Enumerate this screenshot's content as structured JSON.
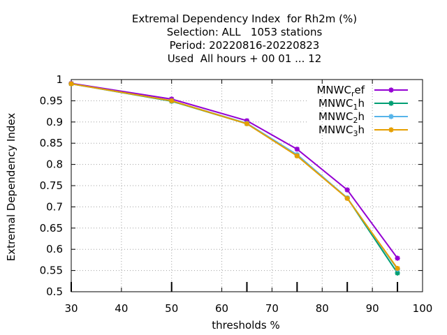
{
  "chart_data": {
    "type": "line",
    "title_lines": [
      "Extremal Dependency Index  for Rh2m (%)",
      "Selection: ALL   1053 stations",
      "Period: 20220816-20220823",
      "Used  All hours + 00 01 ... 12"
    ],
    "xlabel": "thresholds %",
    "ylabel": "Extremal Dependency Index",
    "xlim": [
      30,
      100
    ],
    "ylim": [
      0.5,
      1
    ],
    "x_ticks": [
      30,
      40,
      50,
      60,
      70,
      80,
      90,
      100
    ],
    "y_ticks": [
      0.5,
      0.55,
      0.6,
      0.65,
      0.7,
      0.75,
      0.8,
      0.85,
      0.9,
      0.95,
      1
    ],
    "y_tick_labels": [
      "0.5",
      "0.55",
      "0.6",
      "0.65",
      "0.7",
      "0.75",
      "0.8",
      "0.85",
      "0.9",
      "0.95",
      "1"
    ],
    "data_x_ticks": [
      30,
      50,
      65,
      75,
      85,
      95
    ],
    "grid": true,
    "legend_position": "top-right",
    "x": [
      30,
      50,
      65,
      75,
      85,
      95
    ],
    "series": [
      {
        "name": "MNWC_ref",
        "label_base": "MNWC",
        "label_sub": "r",
        "label_rest": "ef",
        "color": "#9400d3",
        "values": [
          0.991,
          0.954,
          0.903,
          0.836,
          0.74,
          0.579
        ]
      },
      {
        "name": "MNWC_1h",
        "label_base": "MNWC",
        "label_sub": "1",
        "label_rest": "h",
        "color": "#009e73",
        "values": [
          0.99,
          0.949,
          0.896,
          0.821,
          0.721,
          0.544
        ]
      },
      {
        "name": "MNWC_2h",
        "label_base": "MNWC",
        "label_sub": "2",
        "label_rest": "h",
        "color": "#56b4e9",
        "values": [
          0.99,
          0.95,
          0.897,
          0.823,
          0.721,
          0.553
        ]
      },
      {
        "name": "MNWC_3h",
        "label_base": "MNWC",
        "label_sub": "3",
        "label_rest": "h",
        "color": "#e69f00",
        "values": [
          0.99,
          0.95,
          0.896,
          0.82,
          0.72,
          0.555
        ]
      }
    ]
  }
}
